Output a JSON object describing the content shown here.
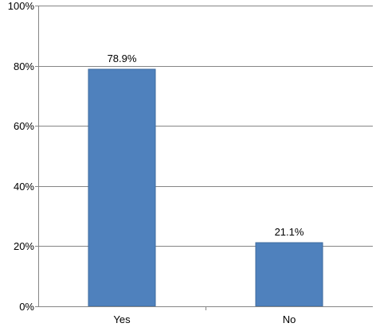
{
  "chart_data": {
    "type": "bar",
    "title": "",
    "xlabel": "",
    "ylabel": "",
    "categories": [
      "Yes",
      "No"
    ],
    "values": [
      78.9,
      21.1
    ],
    "data_labels": [
      "78.9%",
      "21.1%"
    ],
    "ylim": [
      0,
      100
    ],
    "y_ticks": [
      0,
      20,
      40,
      60,
      80,
      100
    ],
    "y_tick_labels": [
      "0%",
      "20%",
      "40%",
      "60%",
      "80%",
      "100%"
    ],
    "grid": true,
    "legend": "none",
    "bar_color": "#4F81BD",
    "bar_border_color": "#3C6A9E"
  }
}
